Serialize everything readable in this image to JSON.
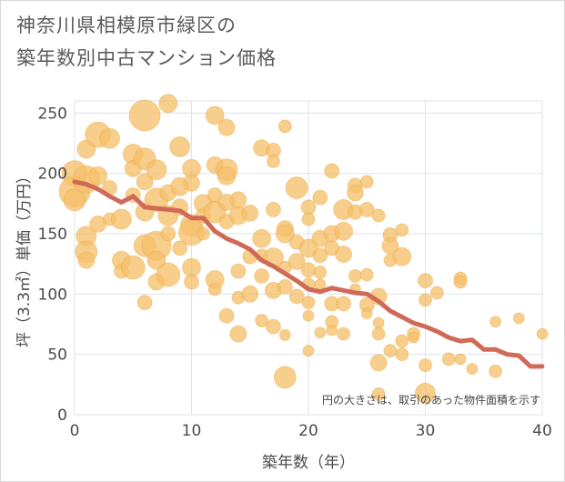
{
  "title_line1": "神奈川県相模原市緑区の",
  "title_line2": "築年数別中古マンション価格",
  "note": "円の大きさは、取引のあった物件面積を示す",
  "colors": {
    "bubble": "#f5c06a",
    "line": "#d06a58",
    "grid": "#dbe3ea",
    "plot_bg": "#ffffff"
  },
  "chart_data": {
    "type": "scatter",
    "xlabel": "築年数（年）",
    "ylabel": "坪（3.3㎡）単価（万円）",
    "xlim": [
      0,
      40
    ],
    "ylim": [
      0,
      260
    ],
    "xticks": [
      0,
      10,
      20,
      30,
      40
    ],
    "yticks": [
      0,
      50,
      100,
      150,
      200,
      250
    ],
    "trend": {
      "x": [
        0,
        1,
        2,
        3,
        4,
        5,
        6,
        7,
        8,
        9,
        10,
        11,
        12,
        13,
        14,
        15,
        16,
        17,
        18,
        19,
        20,
        21,
        22,
        23,
        24,
        25,
        26,
        27,
        28,
        29,
        30,
        31,
        32,
        33,
        34,
        35,
        36,
        37,
        38,
        39,
        40
      ],
      "y": [
        193,
        191,
        187,
        181,
        176,
        181,
        172,
        171,
        170,
        169,
        163,
        163,
        152,
        146,
        142,
        137,
        128,
        123,
        117,
        111,
        104,
        102,
        105,
        103,
        101,
        100,
        94,
        86,
        81,
        76,
        73,
        69,
        64,
        61,
        62,
        54,
        54,
        50,
        49,
        40,
        40
      ]
    },
    "points": [
      {
        "x": 0,
        "y": 200,
        "s": 14
      },
      {
        "x": 0,
        "y": 185,
        "s": 17
      },
      {
        "x": 0,
        "y": 178,
        "s": 12
      },
      {
        "x": 1,
        "y": 195,
        "s": 15
      },
      {
        "x": 1,
        "y": 220,
        "s": 10
      },
      {
        "x": 1,
        "y": 148,
        "s": 11
      },
      {
        "x": 1,
        "y": 135,
        "s": 12
      },
      {
        "x": 1,
        "y": 128,
        "s": 9
      },
      {
        "x": 2,
        "y": 232,
        "s": 14
      },
      {
        "x": 2,
        "y": 198,
        "s": 10
      },
      {
        "x": 2,
        "y": 158,
        "s": 9
      },
      {
        "x": 3,
        "y": 229,
        "s": 11
      },
      {
        "x": 3,
        "y": 188,
        "s": 8
      },
      {
        "x": 3,
        "y": 162,
        "s": 7
      },
      {
        "x": 4,
        "y": 128,
        "s": 10
      },
      {
        "x": 4,
        "y": 119,
        "s": 8
      },
      {
        "x": 4,
        "y": 162,
        "s": 11
      },
      {
        "x": 5,
        "y": 216,
        "s": 11
      },
      {
        "x": 5,
        "y": 204,
        "s": 9
      },
      {
        "x": 5,
        "y": 182,
        "s": 8
      },
      {
        "x": 5,
        "y": 122,
        "s": 13
      },
      {
        "x": 6,
        "y": 248,
        "s": 17
      },
      {
        "x": 6,
        "y": 212,
        "s": 12
      },
      {
        "x": 6,
        "y": 193,
        "s": 9
      },
      {
        "x": 6,
        "y": 168,
        "s": 10
      },
      {
        "x": 6,
        "y": 140,
        "s": 12
      },
      {
        "x": 6,
        "y": 93,
        "s": 8
      },
      {
        "x": 7,
        "y": 203,
        "s": 11
      },
      {
        "x": 7,
        "y": 178,
        "s": 13
      },
      {
        "x": 7,
        "y": 140,
        "s": 16
      },
      {
        "x": 7,
        "y": 128,
        "s": 10
      },
      {
        "x": 7,
        "y": 110,
        "s": 9
      },
      {
        "x": 8,
        "y": 258,
        "s": 10
      },
      {
        "x": 8,
        "y": 184,
        "s": 9
      },
      {
        "x": 8,
        "y": 165,
        "s": 11
      },
      {
        "x": 8,
        "y": 150,
        "s": 8
      },
      {
        "x": 8,
        "y": 116,
        "s": 13
      },
      {
        "x": 9,
        "y": 222,
        "s": 11
      },
      {
        "x": 9,
        "y": 189,
        "s": 10
      },
      {
        "x": 9,
        "y": 172,
        "s": 9
      },
      {
        "x": 9,
        "y": 138,
        "s": 8
      },
      {
        "x": 10,
        "y": 204,
        "s": 10
      },
      {
        "x": 10,
        "y": 192,
        "s": 9
      },
      {
        "x": 10,
        "y": 157,
        "s": 12
      },
      {
        "x": 10,
        "y": 151,
        "s": 14
      },
      {
        "x": 10,
        "y": 122,
        "s": 10
      },
      {
        "x": 10,
        "y": 110,
        "s": 8
      },
      {
        "x": 11,
        "y": 175,
        "s": 10
      },
      {
        "x": 11,
        "y": 165,
        "s": 8
      },
      {
        "x": 11,
        "y": 150,
        "s": 7
      },
      {
        "x": 12,
        "y": 248,
        "s": 10
      },
      {
        "x": 12,
        "y": 207,
        "s": 9
      },
      {
        "x": 12,
        "y": 182,
        "s": 8
      },
      {
        "x": 12,
        "y": 168,
        "s": 12
      },
      {
        "x": 12,
        "y": 112,
        "s": 10
      },
      {
        "x": 12,
        "y": 104,
        "s": 7
      },
      {
        "x": 13,
        "y": 238,
        "s": 9
      },
      {
        "x": 13,
        "y": 203,
        "s": 12
      },
      {
        "x": 13,
        "y": 198,
        "s": 10
      },
      {
        "x": 13,
        "y": 176,
        "s": 9
      },
      {
        "x": 13,
        "y": 160,
        "s": 8
      },
      {
        "x": 13,
        "y": 82,
        "s": 8
      },
      {
        "x": 14,
        "y": 178,
        "s": 9
      },
      {
        "x": 14,
        "y": 165,
        "s": 10
      },
      {
        "x": 14,
        "y": 119,
        "s": 8
      },
      {
        "x": 14,
        "y": 97,
        "s": 7
      },
      {
        "x": 14,
        "y": 67,
        "s": 9
      },
      {
        "x": 15,
        "y": 167,
        "s": 9
      },
      {
        "x": 15,
        "y": 131,
        "s": 8
      },
      {
        "x": 15,
        "y": 100,
        "s": 9
      },
      {
        "x": 16,
        "y": 221,
        "s": 9
      },
      {
        "x": 16,
        "y": 146,
        "s": 10
      },
      {
        "x": 16,
        "y": 132,
        "s": 7
      },
      {
        "x": 16,
        "y": 115,
        "s": 8
      },
      {
        "x": 16,
        "y": 78,
        "s": 7
      },
      {
        "x": 17,
        "y": 219,
        "s": 8
      },
      {
        "x": 17,
        "y": 210,
        "s": 7
      },
      {
        "x": 17,
        "y": 170,
        "s": 8
      },
      {
        "x": 17,
        "y": 130,
        "s": 11
      },
      {
        "x": 17,
        "y": 103,
        "s": 9
      },
      {
        "x": 17,
        "y": 73,
        "s": 8
      },
      {
        "x": 18,
        "y": 239,
        "s": 7
      },
      {
        "x": 18,
        "y": 154,
        "s": 9
      },
      {
        "x": 18,
        "y": 150,
        "s": 10
      },
      {
        "x": 18,
        "y": 122,
        "s": 7
      },
      {
        "x": 18,
        "y": 106,
        "s": 8
      },
      {
        "x": 18,
        "y": 66,
        "s": 6
      },
      {
        "x": 18,
        "y": 31,
        "s": 12
      },
      {
        "x": 19,
        "y": 188,
        "s": 12
      },
      {
        "x": 19,
        "y": 143,
        "s": 8
      },
      {
        "x": 19,
        "y": 127,
        "s": 9
      },
      {
        "x": 19,
        "y": 98,
        "s": 8
      },
      {
        "x": 20,
        "y": 172,
        "s": 8
      },
      {
        "x": 20,
        "y": 162,
        "s": 7
      },
      {
        "x": 20,
        "y": 138,
        "s": 10
      },
      {
        "x": 20,
        "y": 120,
        "s": 8
      },
      {
        "x": 20,
        "y": 108,
        "s": 7
      },
      {
        "x": 20,
        "y": 93,
        "s": 7
      },
      {
        "x": 20,
        "y": 82,
        "s": 6
      },
      {
        "x": 20,
        "y": 53,
        "s": 6
      },
      {
        "x": 21,
        "y": 180,
        "s": 8
      },
      {
        "x": 21,
        "y": 146,
        "s": 9
      },
      {
        "x": 21,
        "y": 132,
        "s": 8
      },
      {
        "x": 21,
        "y": 118,
        "s": 7
      },
      {
        "x": 21,
        "y": 108,
        "s": 6
      },
      {
        "x": 21,
        "y": 68,
        "s": 6
      },
      {
        "x": 22,
        "y": 202,
        "s": 8
      },
      {
        "x": 22,
        "y": 150,
        "s": 9
      },
      {
        "x": 22,
        "y": 138,
        "s": 8
      },
      {
        "x": 22,
        "y": 92,
        "s": 8
      },
      {
        "x": 22,
        "y": 77,
        "s": 7
      },
      {
        "x": 22,
        "y": 70,
        "s": 6
      },
      {
        "x": 23,
        "y": 170,
        "s": 11
      },
      {
        "x": 23,
        "y": 152,
        "s": 10
      },
      {
        "x": 23,
        "y": 133,
        "s": 9
      },
      {
        "x": 23,
        "y": 92,
        "s": 8
      },
      {
        "x": 23,
        "y": 67,
        "s": 7
      },
      {
        "x": 24,
        "y": 190,
        "s": 8
      },
      {
        "x": 24,
        "y": 184,
        "s": 9
      },
      {
        "x": 24,
        "y": 168,
        "s": 8
      },
      {
        "x": 24,
        "y": 115,
        "s": 7
      },
      {
        "x": 24,
        "y": 104,
        "s": 6
      },
      {
        "x": 25,
        "y": 193,
        "s": 7
      },
      {
        "x": 25,
        "y": 170,
        "s": 8
      },
      {
        "x": 25,
        "y": 116,
        "s": 7
      },
      {
        "x": 25,
        "y": 91,
        "s": 8
      },
      {
        "x": 25,
        "y": 84,
        "s": 6
      },
      {
        "x": 26,
        "y": 165,
        "s": 7
      },
      {
        "x": 26,
        "y": 98,
        "s": 9
      },
      {
        "x": 26,
        "y": 76,
        "s": 6
      },
      {
        "x": 26,
        "y": 67,
        "s": 7
      },
      {
        "x": 26,
        "y": 43,
        "s": 9
      },
      {
        "x": 26,
        "y": 17,
        "s": 7
      },
      {
        "x": 27,
        "y": 149,
        "s": 8
      },
      {
        "x": 27,
        "y": 140,
        "s": 9
      },
      {
        "x": 27,
        "y": 128,
        "s": 7
      },
      {
        "x": 27,
        "y": 53,
        "s": 7
      },
      {
        "x": 28,
        "y": 153,
        "s": 7
      },
      {
        "x": 28,
        "y": 131,
        "s": 10
      },
      {
        "x": 28,
        "y": 61,
        "s": 7
      },
      {
        "x": 28,
        "y": 50,
        "s": 7
      },
      {
        "x": 29,
        "y": 67,
        "s": 7
      },
      {
        "x": 29,
        "y": 64,
        "s": 6
      },
      {
        "x": 30,
        "y": 111,
        "s": 8
      },
      {
        "x": 30,
        "y": 95,
        "s": 7
      },
      {
        "x": 30,
        "y": 41,
        "s": 7
      },
      {
        "x": 30,
        "y": 18,
        "s": 11
      },
      {
        "x": 31,
        "y": 101,
        "s": 7
      },
      {
        "x": 32,
        "y": 46,
        "s": 7
      },
      {
        "x": 33,
        "y": 113,
        "s": 7
      },
      {
        "x": 33,
        "y": 110,
        "s": 7
      },
      {
        "x": 33,
        "y": 46,
        "s": 6
      },
      {
        "x": 34,
        "y": 38,
        "s": 6
      },
      {
        "x": 36,
        "y": 77,
        "s": 6
      },
      {
        "x": 36,
        "y": 36,
        "s": 7
      },
      {
        "x": 38,
        "y": 80,
        "s": 6
      },
      {
        "x": 40,
        "y": 67,
        "s": 6
      }
    ]
  }
}
